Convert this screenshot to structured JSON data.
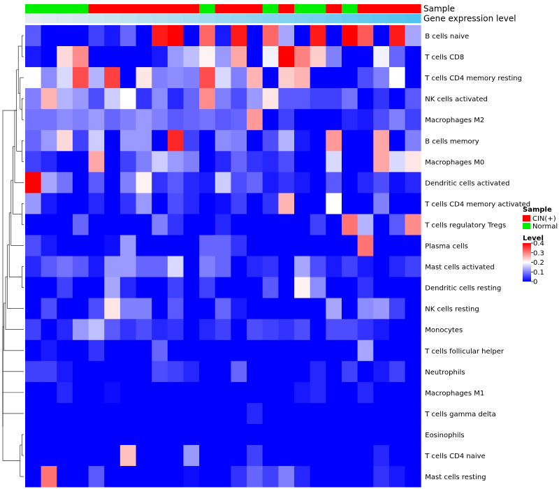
{
  "chart_data": {
    "type": "heatmap",
    "annotation_labels": [
      "Sample",
      "Gene expression level"
    ],
    "legend": {
      "sample_title": "Sample",
      "sample_entries": [
        {
          "label": "CIN(+)",
          "color": "#ff0000"
        },
        {
          "label": "Normal",
          "color": "#00ee00"
        }
      ],
      "level_title": "Level",
      "level_ticks": [
        "0",
        "0.1",
        "0.2",
        "0.3",
        "0.4"
      ],
      "level_tick_values": [
        0,
        0.1,
        0.2,
        0.3,
        0.4
      ]
    },
    "color_scale": {
      "min": 0,
      "mid": 0.2,
      "max": 0.4,
      "low_color": "#0000ff",
      "mid_color": "#ffffff",
      "high_color": "#ff0000"
    },
    "sample_groups": [
      "Normal",
      "Normal",
      "Normal",
      "Normal",
      "CIN(+)",
      "CIN(+)",
      "CIN(+)",
      "CIN(+)",
      "CIN(+)",
      "CIN(+)",
      "CIN(+)",
      "Normal",
      "CIN(+)",
      "CIN(+)",
      "CIN(+)",
      "Normal",
      "CIN(+)",
      "Normal",
      "Normal",
      "CIN(+)",
      "Normal",
      "CIN(+)",
      "CIN(+)",
      "CIN(+)",
      "CIN(+)"
    ],
    "expression_levels": [
      0.02,
      0.04,
      0.06,
      0.08,
      0.1,
      0.12,
      0.14,
      0.16,
      0.18,
      0.2,
      0.22,
      0.24,
      0.26,
      0.28,
      0.3,
      0.32,
      0.34,
      0.36,
      0.38,
      0.4,
      0.42,
      0.44,
      0.46,
      0.48,
      0.5
    ],
    "rows": [
      "B cells naive",
      "T cells CD8",
      "T cells CD4 memory resting",
      "NK cells activated",
      "Macrophages M2",
      "B cells memory",
      "Macrophages M0",
      "Dendritic cells activated",
      "T cells CD4 memory activated",
      "T cells regulatory  Tregs",
      "Plasma cells",
      "Mast cells activated",
      "Dendritic cells resting",
      "NK cells resting",
      "Monocytes",
      "T cells follicular helper",
      "Neutrophils",
      "Macrophages M1",
      "T cells gamma delta",
      "Eosinophils",
      "T cells CD4 naive",
      "Mast cells resting"
    ],
    "values": [
      [
        0.07,
        0.0,
        0.0,
        0.0,
        0.05,
        0.02,
        0.08,
        0.0,
        0.38,
        0.4,
        0.0,
        0.32,
        0.02,
        0.38,
        0.0,
        0.32,
        0.13,
        0.0,
        0.38,
        0.0,
        0.4,
        0.33,
        0.0,
        0.38,
        0.13
      ],
      [
        0.02,
        0.0,
        0.23,
        0.29,
        0.0,
        0.0,
        0.0,
        0.0,
        0.02,
        0.12,
        0.15,
        0.21,
        0.12,
        0.27,
        0.0,
        0.19,
        0.4,
        0.3,
        0.24,
        0.1,
        0.0,
        0.0,
        0.19,
        0.08,
        0.0
      ],
      [
        0.2,
        0.11,
        0.17,
        0.34,
        0.14,
        0.35,
        0.0,
        0.22,
        0.1,
        0.11,
        0.1,
        0.34,
        0.17,
        0.1,
        0.26,
        0.0,
        0.24,
        0.26,
        0.0,
        0.0,
        0.0,
        0.06,
        0.1,
        0.2,
        0.0
      ],
      [
        0.1,
        0.26,
        0.14,
        0.12,
        0.06,
        0.16,
        0.2,
        0.04,
        0.11,
        0.03,
        0.08,
        0.29,
        0.1,
        0.06,
        0.12,
        0.22,
        0.07,
        0.07,
        0.05,
        0.05,
        0.09,
        0.0,
        0.04,
        0.0,
        0.07
      ],
      [
        0.09,
        0.09,
        0.11,
        0.1,
        0.12,
        0.08,
        0.1,
        0.12,
        0.1,
        0.07,
        0.08,
        0.09,
        0.07,
        0.08,
        0.28,
        0.0,
        0.05,
        0.0,
        0.0,
        0.0,
        0.03,
        0.02,
        0.06,
        0.1,
        0.05
      ],
      [
        0.08,
        0.12,
        0.23,
        0.05,
        0.16,
        0.0,
        0.12,
        0.12,
        0.0,
        0.37,
        0.05,
        0.0,
        0.11,
        0.1,
        0.0,
        0.06,
        0.14,
        0.02,
        0.0,
        0.28,
        0.0,
        0.0,
        0.27,
        0.0,
        0.1
      ],
      [
        0.05,
        0.03,
        0.0,
        0.0,
        0.27,
        0.0,
        0.05,
        0.1,
        0.16,
        0.12,
        0.1,
        0.0,
        0.03,
        0.08,
        0.04,
        0.03,
        0.06,
        0.0,
        0.0,
        0.17,
        0.0,
        0.0,
        0.27,
        0.17,
        0.22
      ],
      [
        0.4,
        0.13,
        0.09,
        0.0,
        0.07,
        0.0,
        0.1,
        0.21,
        0.04,
        0.07,
        0.03,
        0.02,
        0.16,
        0.06,
        0.08,
        0.02,
        0.04,
        0.02,
        0.0,
        0.07,
        0.0,
        0.03,
        0.06,
        0.01,
        0.03
      ],
      [
        0.12,
        0.02,
        0.0,
        0.0,
        0.03,
        0.0,
        0.04,
        0.12,
        0.0,
        0.06,
        0.03,
        0.0,
        0.01,
        0.05,
        0.0,
        0.04,
        0.26,
        0.0,
        0.0,
        0.2,
        0.0,
        0.0,
        0.1,
        0.0,
        0.0
      ],
      [
        0.0,
        0.0,
        0.0,
        0.08,
        0.0,
        0.0,
        0.0,
        0.0,
        0.1,
        0.04,
        0.0,
        0.0,
        0.03,
        0.0,
        0.0,
        0.0,
        0.0,
        0.0,
        0.05,
        0.0,
        0.31,
        0.14,
        0.0,
        0.07,
        0.29
      ],
      [
        0.06,
        0.02,
        0.0,
        0.0,
        0.0,
        0.01,
        0.12,
        0.0,
        0.0,
        0.0,
        0.0,
        0.08,
        0.08,
        0.04,
        0.0,
        0.0,
        0.0,
        0.0,
        0.0,
        0.0,
        0.0,
        0.31,
        0.0,
        0.0,
        0.0
      ],
      [
        0.03,
        0.07,
        0.09,
        0.07,
        0.02,
        0.12,
        0.12,
        0.08,
        0.08,
        0.17,
        0.0,
        0.1,
        0.08,
        0.0,
        0.03,
        0.04,
        0.0,
        0.13,
        0.06,
        0.02,
        0.05,
        0.02,
        0.0,
        0.03,
        0.05
      ],
      [
        0.0,
        0.0,
        0.05,
        0.0,
        0.0,
        0.13,
        0.03,
        0.0,
        0.0,
        0.05,
        0.0,
        0.05,
        0.0,
        0.0,
        0.0,
        0.07,
        0.0,
        0.21,
        0.11,
        0.0,
        0.0,
        0.04,
        0.0,
        0.0,
        0.0
      ],
      [
        0.0,
        0.06,
        0.0,
        0.0,
        0.06,
        0.22,
        0.1,
        0.1,
        0.0,
        0.07,
        0.0,
        0.0,
        0.08,
        0.02,
        0.0,
        0.0,
        0.0,
        0.0,
        0.0,
        0.13,
        0.0,
        0.11,
        0.12,
        0.05,
        0.0
      ],
      [
        0.05,
        0.0,
        0.03,
        0.12,
        0.15,
        0.07,
        0.04,
        0.06,
        0.03,
        0.04,
        0.0,
        0.03,
        0.05,
        0.0,
        0.06,
        0.05,
        0.04,
        0.06,
        0.0,
        0.06,
        0.06,
        0.04,
        0.02,
        0.0,
        0.0
      ],
      [
        0.0,
        0.02,
        0.0,
        0.0,
        0.04,
        0.0,
        0.0,
        0.0,
        0.08,
        0.0,
        0.0,
        0.0,
        0.0,
        0.0,
        0.0,
        0.0,
        0.0,
        0.0,
        0.0,
        0.0,
        0.0,
        0.13,
        0.0,
        0.0,
        0.0
      ],
      [
        0.05,
        0.05,
        0.02,
        0.0,
        0.0,
        0.0,
        0.0,
        0.0,
        0.06,
        0.05,
        0.03,
        0.0,
        0.0,
        0.08,
        0.0,
        0.0,
        0.0,
        0.0,
        0.03,
        0.0,
        0.05,
        0.0,
        0.02,
        0.05,
        0.0
      ],
      [
        0.0,
        0.0,
        0.03,
        0.0,
        0.0,
        0.01,
        0.0,
        0.0,
        0.0,
        0.0,
        0.0,
        0.0,
        0.0,
        0.0,
        0.0,
        0.0,
        0.0,
        0.02,
        0.03,
        0.0,
        0.0,
        0.03,
        0.0,
        0.0,
        0.0
      ],
      [
        0.0,
        0.0,
        0.0,
        0.0,
        0.0,
        0.0,
        0.0,
        0.0,
        0.0,
        0.0,
        0.0,
        0.0,
        0.0,
        0.0,
        0.03,
        0.0,
        0.0,
        0.0,
        0.0,
        0.0,
        0.0,
        0.0,
        0.0,
        0.0,
        0.0
      ],
      [
        0.0,
        0.0,
        0.0,
        0.0,
        0.0,
        0.0,
        0.0,
        0.0,
        0.0,
        0.0,
        0.0,
        0.0,
        0.0,
        0.0,
        0.0,
        0.0,
        0.0,
        0.0,
        0.0,
        0.0,
        0.0,
        0.0,
        0.0,
        0.0,
        0.0
      ],
      [
        0.0,
        0.0,
        0.0,
        0.0,
        0.0,
        0.0,
        0.25,
        0.0,
        0.0,
        0.0,
        0.12,
        0.0,
        0.0,
        0.0,
        0.05,
        0.0,
        0.0,
        0.0,
        0.0,
        0.0,
        0.0,
        0.0,
        0.03,
        0.0,
        0.0
      ],
      [
        0.0,
        0.31,
        0.0,
        0.0,
        0.07,
        0.0,
        0.0,
        0.0,
        0.0,
        0.0,
        0.01,
        0.0,
        0.0,
        0.04,
        0.08,
        0.05,
        0.1,
        0.03,
        0.0,
        0.0,
        0.0,
        0.0,
        0.04,
        0.02,
        0.0
      ]
    ],
    "row_dendrogram": [
      [
        0,
        1
      ],
      [
        3,
        4
      ],
      [
        2,
        -2
      ],
      [
        -1,
        -3
      ],
      [
        5,
        6
      ],
      [
        -4,
        -5
      ],
      [
        -6,
        7
      ],
      [
        8,
        9
      ],
      [
        -7,
        -8
      ],
      [
        11,
        12
      ],
      [
        -9,
        10
      ],
      [
        -10,
        -11
      ],
      [
        -12,
        13
      ],
      [
        -13,
        14
      ],
      [
        -14,
        15
      ],
      [
        -15,
        16
      ],
      [
        -16,
        17
      ],
      [
        -17,
        18
      ],
      [
        19,
        20
      ],
      [
        -19,
        21
      ],
      [
        -18,
        -20
      ],
      [
        -6,
        -21
      ]
    ]
  }
}
